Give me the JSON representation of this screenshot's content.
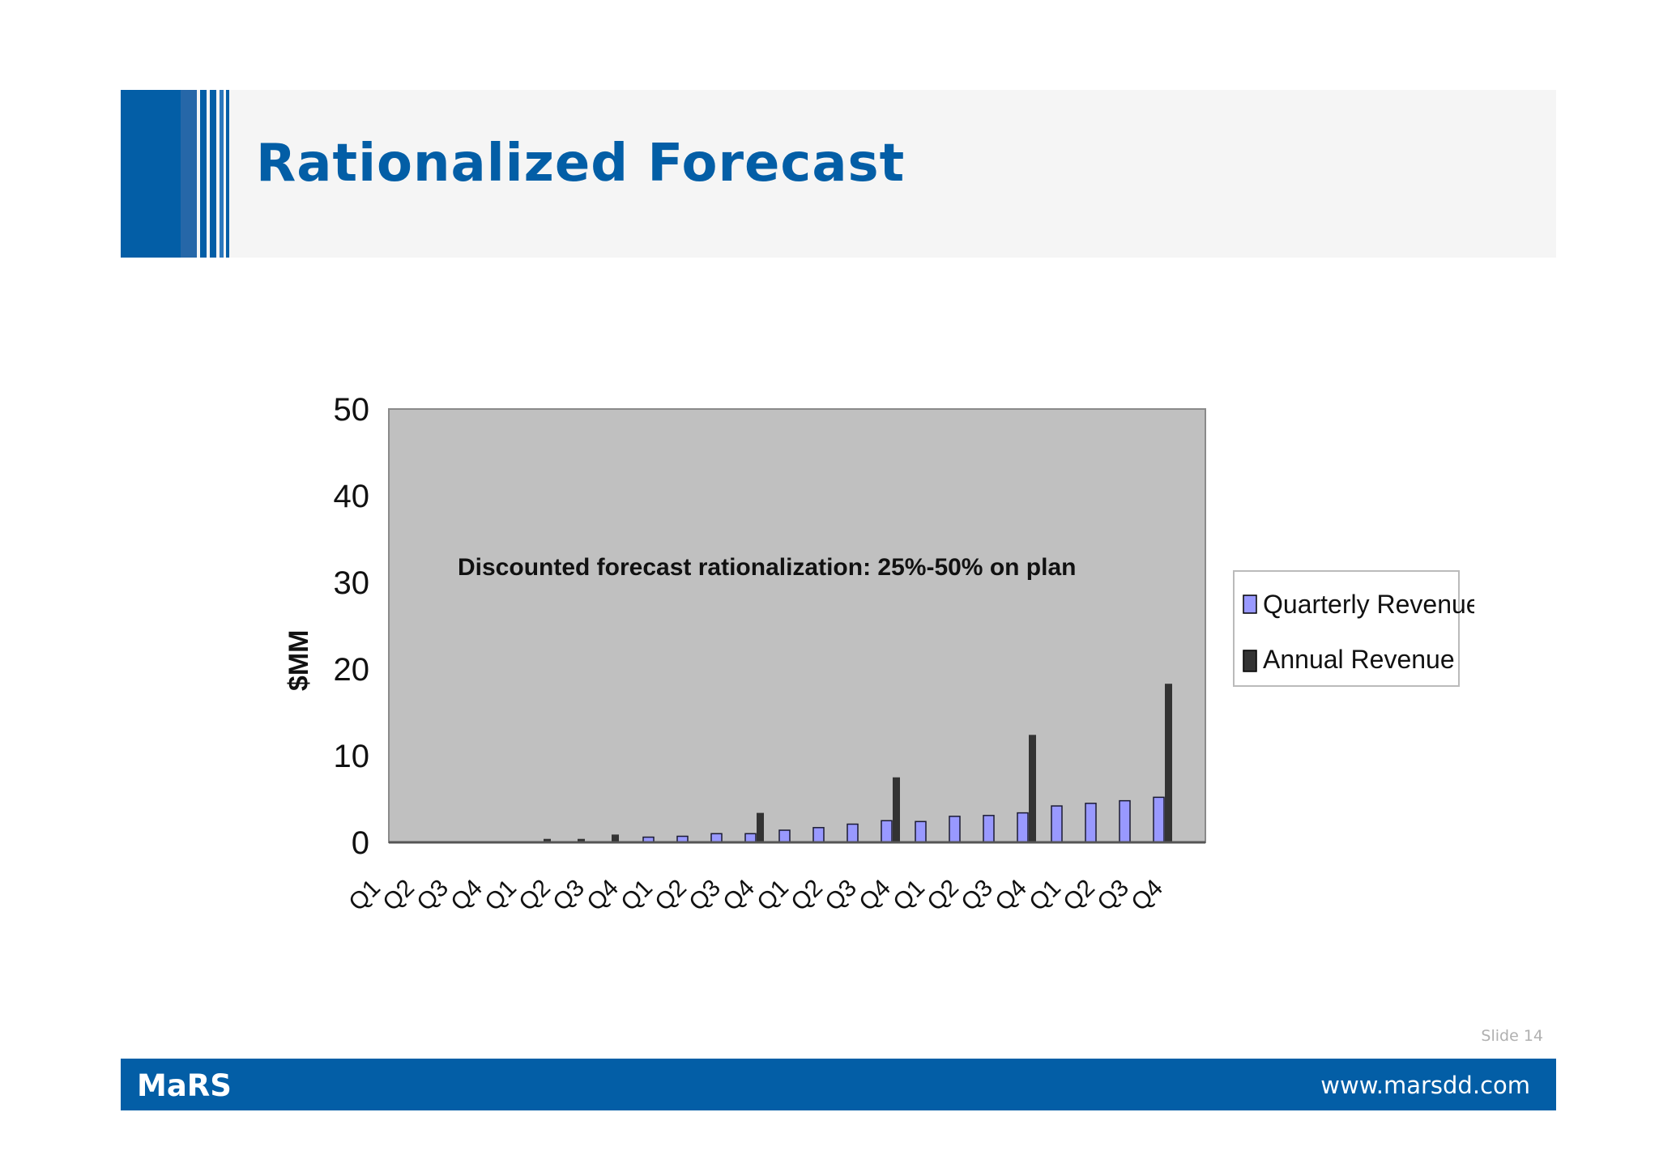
{
  "slide": {
    "title": "Rationalized Forecast",
    "slide_number": "Slide 14",
    "footer_brand": "MaRS",
    "footer_url": "www.marsdd.com"
  },
  "colors": {
    "brand_blue": "#035ea6",
    "plot_bg": "#c0c0c0",
    "quarterly": "#9999ff",
    "annual": "#333333"
  },
  "chart_data": {
    "type": "bar",
    "ylabel": "$MM",
    "xlabel": "",
    "ylim": [
      0,
      50
    ],
    "yticks": [
      0,
      10,
      20,
      30,
      40,
      50
    ],
    "annotation": "Discounted forecast rationalization: 25%-50% on plan",
    "legend_position": "right",
    "categories": [
      "Q1",
      "Q2",
      "Q3",
      "Q4",
      "Q1",
      "Q2",
      "Q3",
      "Q4",
      "Q1",
      "Q2",
      "Q3",
      "Q4",
      "Q1",
      "Q2",
      "Q3",
      "Q4",
      "Q1",
      "Q2",
      "Q3",
      "Q4",
      "Q1",
      "Q2",
      "Q3",
      "Q4"
    ],
    "series": [
      {
        "name": "Quarterly Revenue",
        "values": [
          0,
          0,
          0,
          0,
          0,
          0,
          0,
          0,
          0.6,
          0.7,
          1.0,
          1.0,
          1.4,
          1.7,
          2.1,
          2.5,
          2.4,
          3.0,
          3.1,
          3.4,
          4.2,
          4.5,
          4.8,
          5.2
        ]
      },
      {
        "name": "Annual Revenue",
        "values": [
          0,
          0,
          0,
          0,
          0,
          0.4,
          0.4,
          0.9,
          0,
          0,
          0,
          3.4,
          0,
          0,
          0,
          7.5,
          0,
          0,
          0,
          12.4,
          0,
          0,
          0,
          18.3
        ]
      }
    ]
  }
}
